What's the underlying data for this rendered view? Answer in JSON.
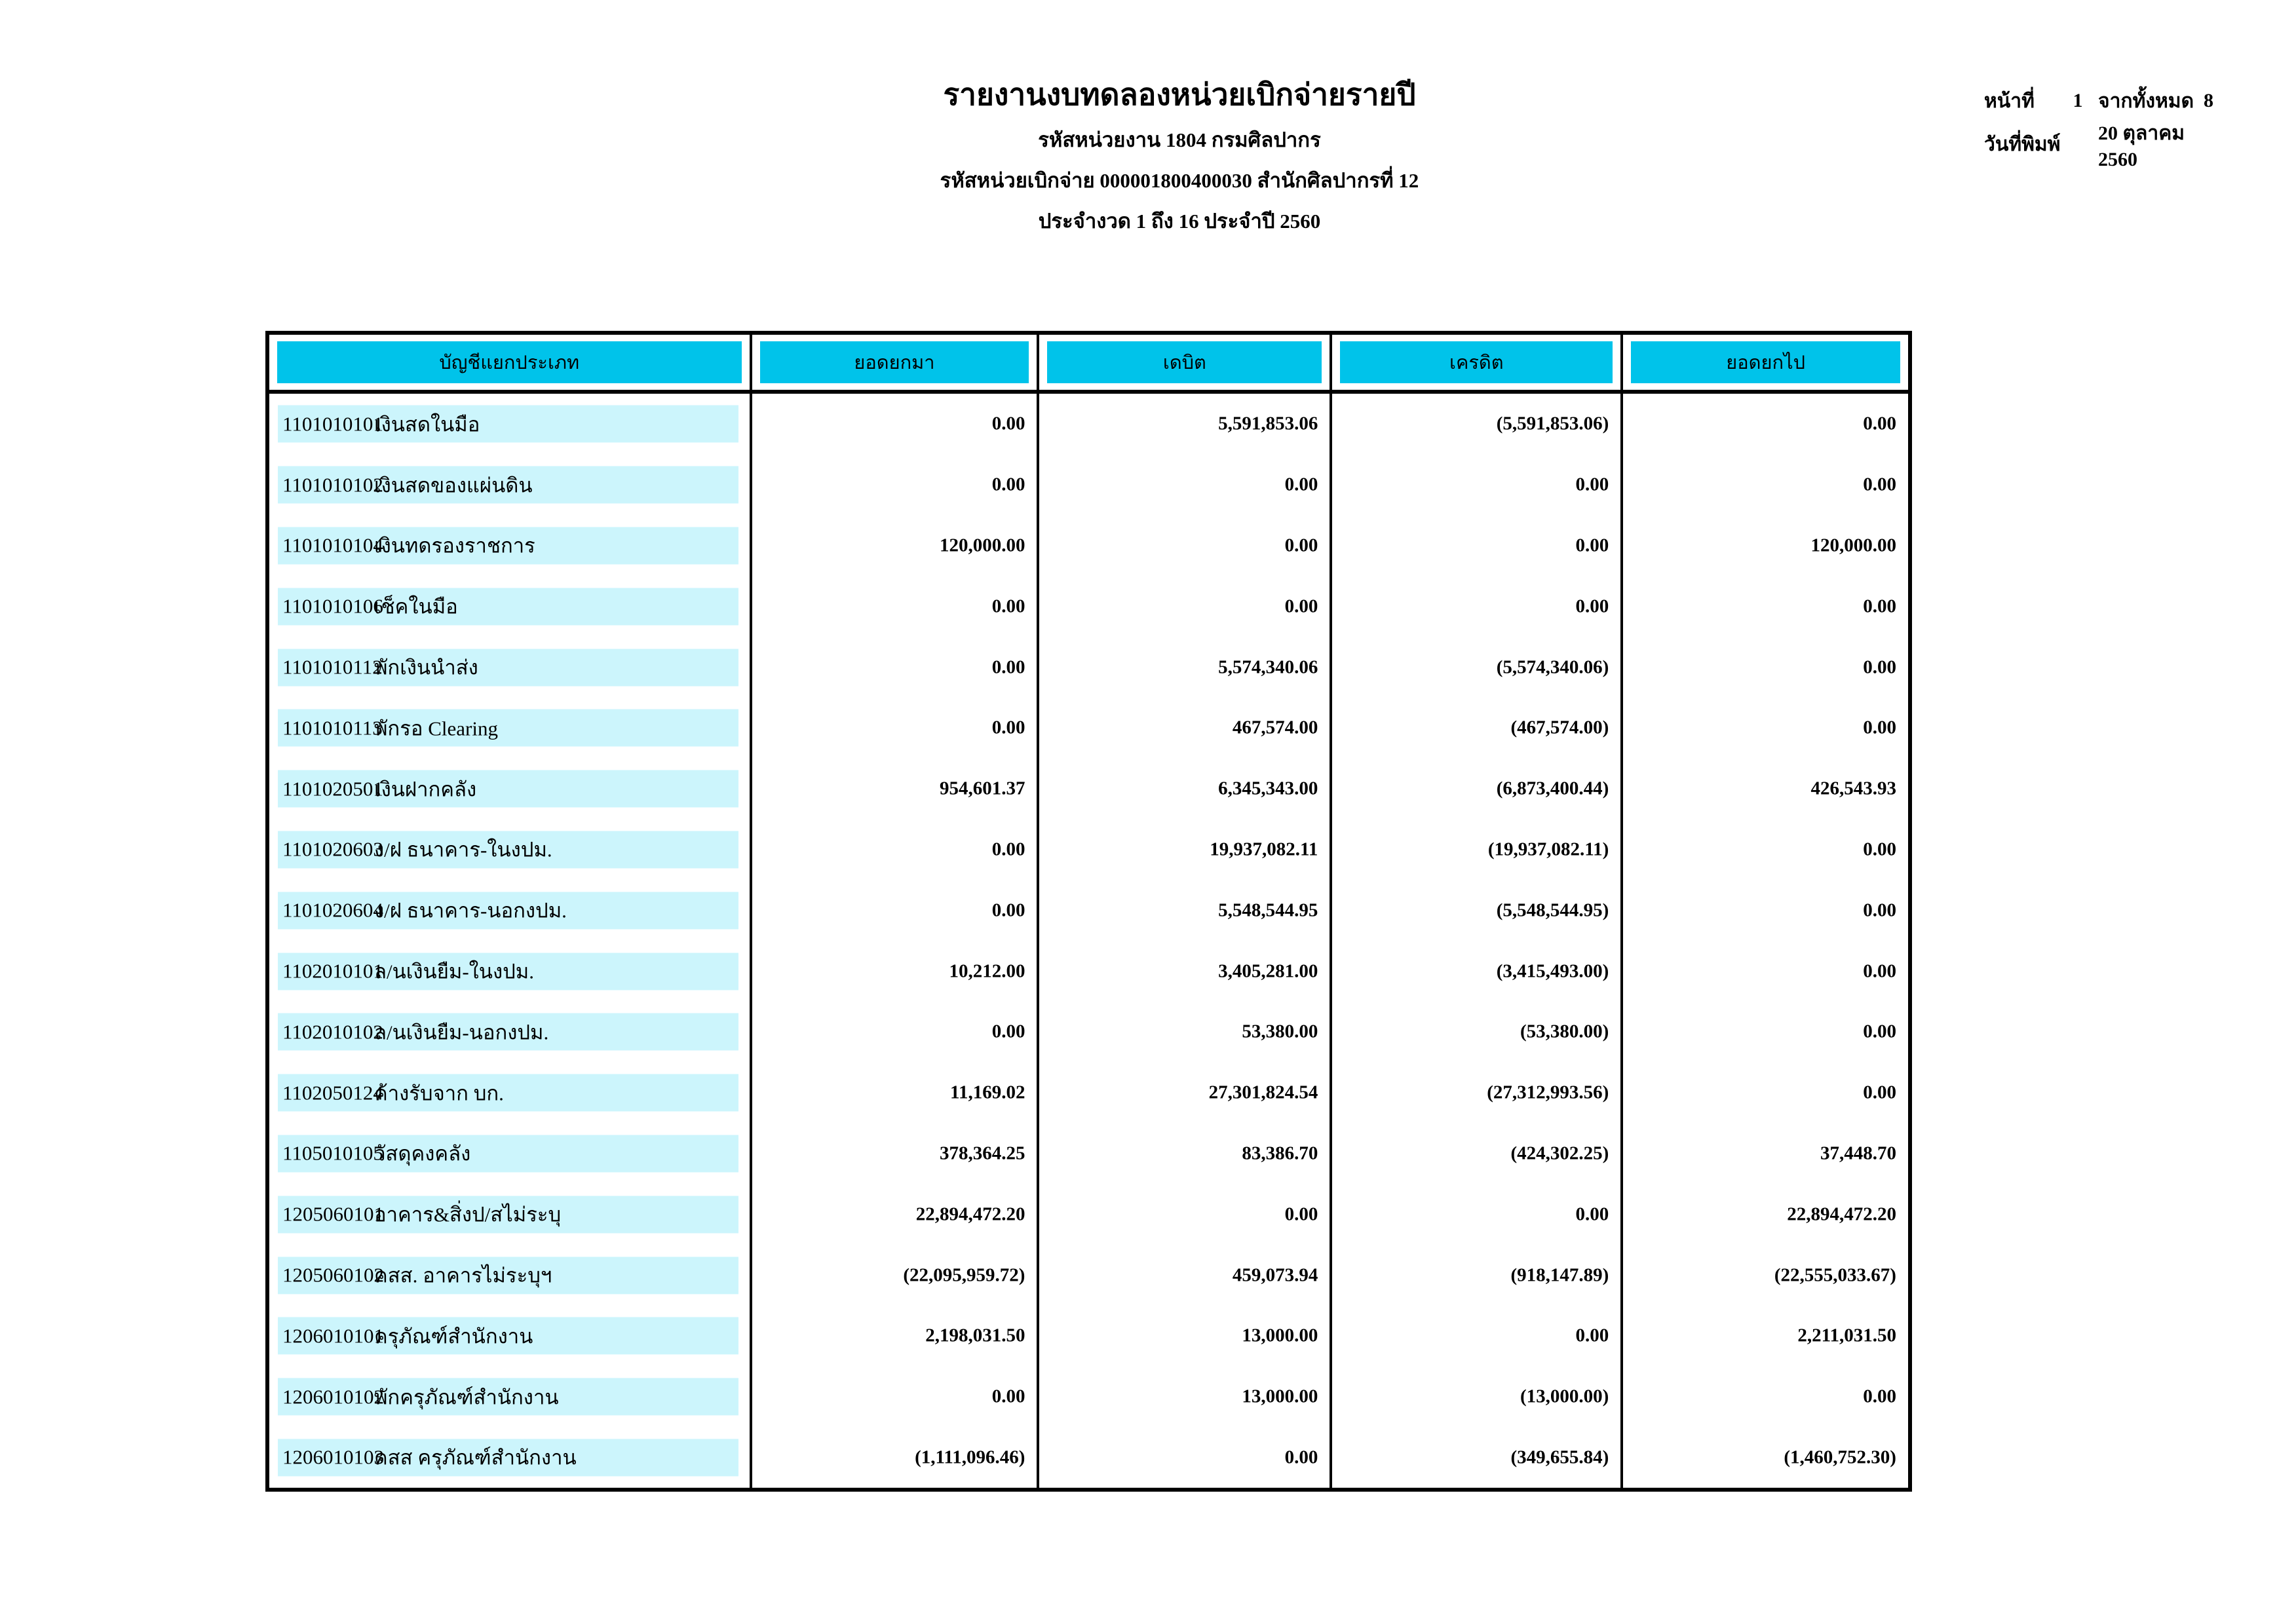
{
  "page": {
    "title": "รายงานงบทดลองหน่วยเบิกจ่ายรายปี",
    "subtitle_agency": "รหัสหน่วยงาน 1804 กรมศิลปากร",
    "subtitle_disbursing_unit": "รหัสหน่วยเบิกจ่าย 000001800400030 สำนักศิลปากรที่ 12",
    "subtitle_period": "ประจำงวด 1 ถึง 16 ประจำปี 2560",
    "page_label": "หน้าที่",
    "page_number": "1",
    "total_pages_label": "จากทั้งหมด",
    "total_pages": "8",
    "print_date_label": "วันที่พิมพ์",
    "print_date": "20 ตุลาคม 2560"
  },
  "colors": {
    "header_cell_bg": "#00c3ea",
    "account_band_bg": "#ccf5fc",
    "border": "#000000"
  },
  "table": {
    "columns": [
      "บัญชีแยกประเภท",
      "ยอดยกมา",
      "เดบิต",
      "เครดิต",
      "ยอดยกไป"
    ],
    "rows": [
      {
        "code": "1101010101",
        "name": "เงินสดในมือ",
        "carry_forward": "0.00",
        "debit": "5,591,853.06",
        "credit": "(5,591,853.06)",
        "balance": "0.00"
      },
      {
        "code": "1101010102",
        "name": "เงินสดของแผ่นดิน",
        "carry_forward": "0.00",
        "debit": "0.00",
        "credit": "0.00",
        "balance": "0.00"
      },
      {
        "code": "1101010104",
        "name": "เงินทดรองราชการ",
        "carry_forward": "120,000.00",
        "debit": "0.00",
        "credit": "0.00",
        "balance": "120,000.00"
      },
      {
        "code": "1101010106",
        "name": "เช็คในมือ",
        "carry_forward": "0.00",
        "debit": "0.00",
        "credit": "0.00",
        "balance": "0.00"
      },
      {
        "code": "1101010112",
        "name": "พักเงินนำส่ง",
        "carry_forward": "0.00",
        "debit": "5,574,340.06",
        "credit": "(5,574,340.06)",
        "balance": "0.00"
      },
      {
        "code": "1101010113",
        "name": "พักรอ Clearing",
        "carry_forward": "0.00",
        "debit": "467,574.00",
        "credit": "(467,574.00)",
        "balance": "0.00"
      },
      {
        "code": "1101020501",
        "name": "เงินฝากคลัง",
        "carry_forward": "954,601.37",
        "debit": "6,345,343.00",
        "credit": "(6,873,400.44)",
        "balance": "426,543.93"
      },
      {
        "code": "1101020603",
        "name": "ง/ฝ ธนาคาร-ในงปม.",
        "carry_forward": "0.00",
        "debit": "19,937,082.11",
        "credit": "(19,937,082.11)",
        "balance": "0.00"
      },
      {
        "code": "1101020604",
        "name": "ง/ฝ ธนาคาร-นอกงปม.",
        "carry_forward": "0.00",
        "debit": "5,548,544.95",
        "credit": "(5,548,544.95)",
        "balance": "0.00"
      },
      {
        "code": "1102010101",
        "name": "ล/นเงินยืม-ในงปม.",
        "carry_forward": "10,212.00",
        "debit": "3,405,281.00",
        "credit": "(3,415,493.00)",
        "balance": "0.00"
      },
      {
        "code": "1102010102",
        "name": "ล/นเงินยืม-นอกงปม.",
        "carry_forward": "0.00",
        "debit": "53,380.00",
        "credit": "(53,380.00)",
        "balance": "0.00"
      },
      {
        "code": "1102050124",
        "name": "ค้างรับจาก บก.",
        "carry_forward": "11,169.02",
        "debit": "27,301,824.54",
        "credit": "(27,312,993.56)",
        "balance": "0.00"
      },
      {
        "code": "1105010105",
        "name": "วัสดุคงคลัง",
        "carry_forward": "378,364.25",
        "debit": "83,386.70",
        "credit": "(424,302.25)",
        "balance": "37,448.70"
      },
      {
        "code": "1205060101",
        "name": "อาคาร&สิ่งป/สไม่ระบุ",
        "carry_forward": "22,894,472.20",
        "debit": "0.00",
        "credit": "0.00",
        "balance": "22,894,472.20"
      },
      {
        "code": "1205060102",
        "name": "คสส. อาคารไม่ระบุฯ",
        "carry_forward": "(22,095,959.72)",
        "debit": "459,073.94",
        "credit": "(918,147.89)",
        "balance": "(22,555,033.67)"
      },
      {
        "code": "1206010101",
        "name": "ครุภัณฑ์สำนักงาน",
        "carry_forward": "2,198,031.50",
        "debit": "13,000.00",
        "credit": "0.00",
        "balance": "2,211,031.50"
      },
      {
        "code": "1206010102",
        "name": "พักครุภัณฑ์สำนักงาน",
        "carry_forward": "0.00",
        "debit": "13,000.00",
        "credit": "(13,000.00)",
        "balance": "0.00"
      },
      {
        "code": "1206010103",
        "name": "คสส ครุภัณฑ์สำนักงาน",
        "carry_forward": "(1,111,096.46)",
        "debit": "0.00",
        "credit": "(349,655.84)",
        "balance": "(1,460,752.30)"
      }
    ]
  }
}
